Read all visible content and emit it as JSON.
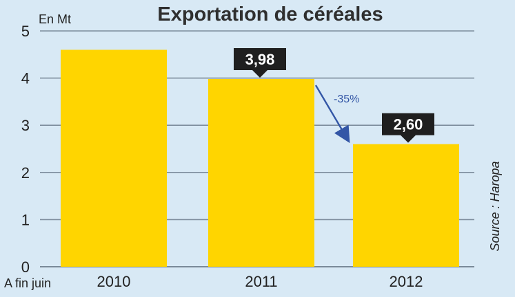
{
  "chart_data": {
    "type": "bar",
    "title": "Exportation de céréales",
    "ylabel": "En Mt",
    "xlabel_prefix": "A fin juin",
    "categories": [
      "2010",
      "2011",
      "2012"
    ],
    "values": [
      4.6,
      3.98,
      2.6
    ],
    "data_labels": [
      "",
      "3,98",
      "2,60"
    ],
    "ylim": [
      0,
      5
    ],
    "yticks": [
      0,
      1,
      2,
      3,
      4,
      5
    ],
    "grid": true,
    "change_annotation": "-35%",
    "source": "Source : Haropa",
    "colors": {
      "background": "#d8e9f5",
      "bar": "#ffd500",
      "grid": "#7c8c9c",
      "label_box": "#1f1f1f",
      "arrow": "#3356a6"
    }
  }
}
